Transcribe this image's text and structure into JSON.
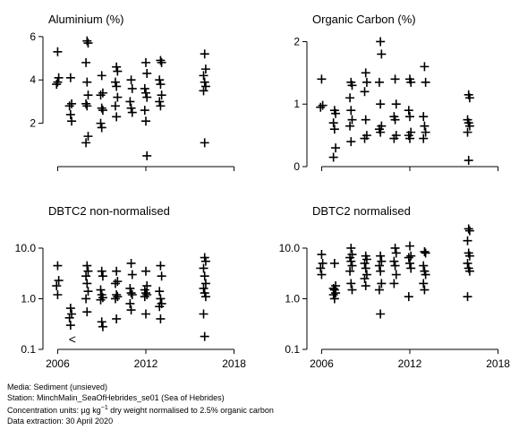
{
  "chart_data": [
    {
      "type": "scatter",
      "title": "Aluminium (%)",
      "xlim": [
        2005,
        2019
      ],
      "ylim": [
        0,
        6.2
      ],
      "yscale": "linear",
      "yticks": [
        2,
        4,
        6
      ],
      "ytick_labels": [
        "2",
        "4",
        "6"
      ],
      "xticks": [
        2006,
        2012,
        2018
      ],
      "xtick_labels": [
        "",
        "",
        ""
      ],
      "points": [
        {
          "x": 2006,
          "y": 5.3
        },
        {
          "x": 2006,
          "y": 4.1
        },
        {
          "x": 2006,
          "y": 3.8
        },
        {
          "x": 2006,
          "y": 3.9
        },
        {
          "x": 2007,
          "y": 4.1
        },
        {
          "x": 2007,
          "y": 2.9
        },
        {
          "x": 2007,
          "y": 2.8
        },
        {
          "x": 2007,
          "y": 2.4
        },
        {
          "x": 2007,
          "y": 2.1
        },
        {
          "x": 2008,
          "y": 5.8
        },
        {
          "x": 2008,
          "y": 5.7
        },
        {
          "x": 2008,
          "y": 4.8
        },
        {
          "x": 2008,
          "y": 3.9
        },
        {
          "x": 2008,
          "y": 3.3
        },
        {
          "x": 2008,
          "y": 2.9
        },
        {
          "x": 2008,
          "y": 2.8
        },
        {
          "x": 2008,
          "y": 1.4
        },
        {
          "x": 2008,
          "y": 1.1
        },
        {
          "x": 2009,
          "y": 4.2
        },
        {
          "x": 2009,
          "y": 3.4
        },
        {
          "x": 2009,
          "y": 3.3
        },
        {
          "x": 2009,
          "y": 2.7
        },
        {
          "x": 2009,
          "y": 2.6
        },
        {
          "x": 2009,
          "y": 2.0
        },
        {
          "x": 2009,
          "y": 1.8
        },
        {
          "x": 2010,
          "y": 4.6
        },
        {
          "x": 2010,
          "y": 4.4
        },
        {
          "x": 2010,
          "y": 3.9
        },
        {
          "x": 2010,
          "y": 3.7
        },
        {
          "x": 2010,
          "y": 3.2
        },
        {
          "x": 2010,
          "y": 2.8
        },
        {
          "x": 2010,
          "y": 2.3
        },
        {
          "x": 2011,
          "y": 4.0
        },
        {
          "x": 2011,
          "y": 3.6
        },
        {
          "x": 2011,
          "y": 3.0
        },
        {
          "x": 2011,
          "y": 2.7
        },
        {
          "x": 2011,
          "y": 2.5
        },
        {
          "x": 2012,
          "y": 4.8
        },
        {
          "x": 2012,
          "y": 4.3
        },
        {
          "x": 2012,
          "y": 3.6
        },
        {
          "x": 2012,
          "y": 3.4
        },
        {
          "x": 2012,
          "y": 3.2
        },
        {
          "x": 2012,
          "y": 2.6
        },
        {
          "x": 2012,
          "y": 2.1
        },
        {
          "x": 2012,
          "y": 0.5
        },
        {
          "x": 2013,
          "y": 4.9
        },
        {
          "x": 2013,
          "y": 4.8
        },
        {
          "x": 2013,
          "y": 4.0
        },
        {
          "x": 2013,
          "y": 3.8
        },
        {
          "x": 2013,
          "y": 3.3
        },
        {
          "x": 2013,
          "y": 3.0
        },
        {
          "x": 2013,
          "y": 2.8
        },
        {
          "x": 2016,
          "y": 5.2
        },
        {
          "x": 2016,
          "y": 4.5
        },
        {
          "x": 2016,
          "y": 4.2
        },
        {
          "x": 2016,
          "y": 3.9
        },
        {
          "x": 2016,
          "y": 3.7
        },
        {
          "x": 2016,
          "y": 3.5
        },
        {
          "x": 2016,
          "y": 1.1
        }
      ]
    },
    {
      "type": "scatter",
      "title": "Organic Carbon (%)",
      "xlim": [
        2005,
        2019
      ],
      "ylim": [
        0,
        2.15
      ],
      "yscale": "linear",
      "yticks": [
        0,
        1,
        2
      ],
      "ytick_labels": [
        "0",
        "1",
        "2"
      ],
      "xticks": [
        2006,
        2012,
        2018
      ],
      "xtick_labels": [
        "",
        "",
        ""
      ],
      "points": [
        {
          "x": 2006,
          "y": 1.4
        },
        {
          "x": 2006,
          "y": 0.98
        },
        {
          "x": 2006,
          "y": 0.95
        },
        {
          "x": 2007,
          "y": 0.9
        },
        {
          "x": 2007,
          "y": 0.85
        },
        {
          "x": 2007,
          "y": 0.7
        },
        {
          "x": 2007,
          "y": 0.6
        },
        {
          "x": 2007,
          "y": 0.3
        },
        {
          "x": 2007,
          "y": 0.15
        },
        {
          "x": 2008,
          "y": 1.35
        },
        {
          "x": 2008,
          "y": 1.3
        },
        {
          "x": 2008,
          "y": 1.1
        },
        {
          "x": 2008,
          "y": 0.9
        },
        {
          "x": 2008,
          "y": 0.75
        },
        {
          "x": 2008,
          "y": 0.65
        },
        {
          "x": 2008,
          "y": 0.4
        },
        {
          "x": 2009,
          "y": 1.5
        },
        {
          "x": 2009,
          "y": 1.35
        },
        {
          "x": 2009,
          "y": 1.2
        },
        {
          "x": 2009,
          "y": 0.75
        },
        {
          "x": 2009,
          "y": 0.5
        },
        {
          "x": 2009,
          "y": 0.45
        },
        {
          "x": 2010,
          "y": 2.0
        },
        {
          "x": 2010,
          "y": 1.8
        },
        {
          "x": 2010,
          "y": 1.35
        },
        {
          "x": 2010,
          "y": 1.0
        },
        {
          "x": 2010,
          "y": 0.65
        },
        {
          "x": 2010,
          "y": 0.6
        },
        {
          "x": 2010,
          "y": 0.55
        },
        {
          "x": 2011,
          "y": 1.4
        },
        {
          "x": 2011,
          "y": 1.0
        },
        {
          "x": 2011,
          "y": 0.8
        },
        {
          "x": 2011,
          "y": 0.75
        },
        {
          "x": 2011,
          "y": 0.5
        },
        {
          "x": 2011,
          "y": 0.45
        },
        {
          "x": 2012,
          "y": 1.4
        },
        {
          "x": 2012,
          "y": 1.35
        },
        {
          "x": 2012,
          "y": 0.9
        },
        {
          "x": 2012,
          "y": 0.8
        },
        {
          "x": 2012,
          "y": 0.55
        },
        {
          "x": 2012,
          "y": 0.5
        },
        {
          "x": 2012,
          "y": 0.45
        },
        {
          "x": 2013,
          "y": 1.6
        },
        {
          "x": 2013,
          "y": 1.35
        },
        {
          "x": 2013,
          "y": 0.8
        },
        {
          "x": 2013,
          "y": 0.65
        },
        {
          "x": 2013,
          "y": 0.55
        },
        {
          "x": 2013,
          "y": 0.45
        },
        {
          "x": 2016,
          "y": 1.15
        },
        {
          "x": 2016,
          "y": 1.1
        },
        {
          "x": 2016,
          "y": 0.75
        },
        {
          "x": 2016,
          "y": 0.7
        },
        {
          "x": 2016,
          "y": 0.65
        },
        {
          "x": 2016,
          "y": 0.55
        },
        {
          "x": 2016,
          "y": 0.1
        }
      ]
    },
    {
      "type": "scatter",
      "title": "DBTC2 non-normalised",
      "xlim": [
        2005,
        2019
      ],
      "ylim": [
        0.1,
        30
      ],
      "yscale": "log",
      "yticks": [
        0.1,
        1,
        10
      ],
      "ytick_labels": [
        "0.1",
        "1.0",
        "10.0"
      ],
      "xticks": [
        2006,
        2012,
        2018
      ],
      "xtick_labels": [
        "2006",
        "2012",
        "2018"
      ],
      "points": [
        {
          "x": 2006,
          "y": 4.5
        },
        {
          "x": 2006,
          "y": 2.3
        },
        {
          "x": 2006,
          "y": 1.8
        },
        {
          "x": 2006,
          "y": 1.2
        },
        {
          "x": 2007,
          "y": 0.65
        },
        {
          "x": 2007,
          "y": 0.5
        },
        {
          "x": 2007,
          "y": 0.42
        },
        {
          "x": 2007,
          "y": 0.3
        },
        {
          "x": 2008,
          "y": 4.5
        },
        {
          "x": 2008,
          "y": 3.5
        },
        {
          "x": 2008,
          "y": 2.8
        },
        {
          "x": 2008,
          "y": 2.0
        },
        {
          "x": 2008,
          "y": 1.4
        },
        {
          "x": 2008,
          "y": 1.0
        },
        {
          "x": 2008,
          "y": 0.55
        },
        {
          "x": 2009,
          "y": 3.5
        },
        {
          "x": 2009,
          "y": 2.8
        },
        {
          "x": 2009,
          "y": 1.5
        },
        {
          "x": 2009,
          "y": 1.2
        },
        {
          "x": 2009,
          "y": 1.05
        },
        {
          "x": 2009,
          "y": 0.95
        },
        {
          "x": 2009,
          "y": 0.35
        },
        {
          "x": 2009,
          "y": 0.28
        },
        {
          "x": 2010,
          "y": 3.5
        },
        {
          "x": 2010,
          "y": 2.2
        },
        {
          "x": 2010,
          "y": 2.0
        },
        {
          "x": 2010,
          "y": 1.2
        },
        {
          "x": 2010,
          "y": 1.1
        },
        {
          "x": 2010,
          "y": 1.0
        },
        {
          "x": 2010,
          "y": 0.4
        },
        {
          "x": 2011,
          "y": 5.0
        },
        {
          "x": 2011,
          "y": 3.0
        },
        {
          "x": 2011,
          "y": 1.6
        },
        {
          "x": 2011,
          "y": 1.3
        },
        {
          "x": 2011,
          "y": 1.2
        },
        {
          "x": 2011,
          "y": 0.8
        },
        {
          "x": 2011,
          "y": 0.6
        },
        {
          "x": 2012,
          "y": 3.5
        },
        {
          "x": 2012,
          "y": 1.8
        },
        {
          "x": 2012,
          "y": 1.5
        },
        {
          "x": 2012,
          "y": 1.3
        },
        {
          "x": 2012,
          "y": 1.2
        },
        {
          "x": 2012,
          "y": 1.1
        },
        {
          "x": 2012,
          "y": 0.5
        },
        {
          "x": 2013,
          "y": 4.5
        },
        {
          "x": 2013,
          "y": 2.8
        },
        {
          "x": 2013,
          "y": 1.4
        },
        {
          "x": 2013,
          "y": 1.0
        },
        {
          "x": 2013,
          "y": 0.8
        },
        {
          "x": 2013,
          "y": 0.7
        },
        {
          "x": 2013,
          "y": 0.4
        },
        {
          "x": 2016,
          "y": 6.5
        },
        {
          "x": 2016,
          "y": 5.5
        },
        {
          "x": 2016,
          "y": 4.0
        },
        {
          "x": 2016,
          "y": 2.8
        },
        {
          "x": 2016,
          "y": 2.0
        },
        {
          "x": 2016,
          "y": 1.6
        },
        {
          "x": 2016,
          "y": 1.3
        },
        {
          "x": 2016,
          "y": 1.1
        },
        {
          "x": 2016,
          "y": 0.5
        },
        {
          "x": 2016,
          "y": 0.18
        }
      ],
      "less_than": [
        {
          "x": 2007,
          "y": 0.16,
          "label": "<"
        }
      ]
    },
    {
      "type": "scatter",
      "title": "DBTC2 normalised",
      "xlim": [
        2005,
        2019
      ],
      "ylim": [
        0.1,
        30
      ],
      "yscale": "log",
      "yticks": [
        0.1,
        1,
        10
      ],
      "ytick_labels": [
        "0.1",
        "1.0",
        "10.0"
      ],
      "xticks": [
        2006,
        2012,
        2018
      ],
      "xtick_labels": [
        "2006",
        "2012",
        "2018"
      ],
      "points": [
        {
          "x": 2006,
          "y": 7.5
        },
        {
          "x": 2006,
          "y": 5.0
        },
        {
          "x": 2006,
          "y": 4.0
        },
        {
          "x": 2006,
          "y": 3.0
        },
        {
          "x": 2007,
          "y": 5.0
        },
        {
          "x": 2007,
          "y": 1.8
        },
        {
          "x": 2007,
          "y": 1.6
        },
        {
          "x": 2007,
          "y": 1.5
        },
        {
          "x": 2007,
          "y": 1.3
        },
        {
          "x": 2007,
          "y": 1.2
        },
        {
          "x": 2007,
          "y": 1.0
        },
        {
          "x": 2008,
          "y": 10.0
        },
        {
          "x": 2008,
          "y": 7.5
        },
        {
          "x": 2008,
          "y": 6.5
        },
        {
          "x": 2008,
          "y": 5.5
        },
        {
          "x": 2008,
          "y": 4.5
        },
        {
          "x": 2008,
          "y": 3.5
        },
        {
          "x": 2008,
          "y": 2.0
        },
        {
          "x": 2008,
          "y": 1.5
        },
        {
          "x": 2009,
          "y": 7.0
        },
        {
          "x": 2009,
          "y": 6.0
        },
        {
          "x": 2009,
          "y": 5.0
        },
        {
          "x": 2009,
          "y": 4.0
        },
        {
          "x": 2009,
          "y": 3.0
        },
        {
          "x": 2009,
          "y": 2.5
        },
        {
          "x": 2009,
          "y": 1.8
        },
        {
          "x": 2010,
          "y": 7.0
        },
        {
          "x": 2010,
          "y": 5.5
        },
        {
          "x": 2010,
          "y": 4.5
        },
        {
          "x": 2010,
          "y": 3.5
        },
        {
          "x": 2010,
          "y": 2.0
        },
        {
          "x": 2010,
          "y": 1.5
        },
        {
          "x": 2010,
          "y": 0.5
        },
        {
          "x": 2011,
          "y": 10.0
        },
        {
          "x": 2011,
          "y": 8.0
        },
        {
          "x": 2011,
          "y": 5.5
        },
        {
          "x": 2011,
          "y": 4.5
        },
        {
          "x": 2011,
          "y": 3.0
        },
        {
          "x": 2011,
          "y": 2.0
        },
        {
          "x": 2012,
          "y": 11.0
        },
        {
          "x": 2012,
          "y": 7.0
        },
        {
          "x": 2012,
          "y": 6.5
        },
        {
          "x": 2012,
          "y": 5.0
        },
        {
          "x": 2012,
          "y": 4.0
        },
        {
          "x": 2012,
          "y": 1.1
        },
        {
          "x": 2013,
          "y": 8.5
        },
        {
          "x": 2013,
          "y": 8.0
        },
        {
          "x": 2013,
          "y": 4.5
        },
        {
          "x": 2013,
          "y": 3.5
        },
        {
          "x": 2013,
          "y": 3.0
        },
        {
          "x": 2013,
          "y": 2.0
        },
        {
          "x": 2013,
          "y": 1.5
        },
        {
          "x": 2016,
          "y": 24.0
        },
        {
          "x": 2016,
          "y": 22.0
        },
        {
          "x": 2016,
          "y": 14.0
        },
        {
          "x": 2016,
          "y": 8.0
        },
        {
          "x": 2016,
          "y": 7.0
        },
        {
          "x": 2016,
          "y": 5.0
        },
        {
          "x": 2016,
          "y": 4.0
        },
        {
          "x": 2016,
          "y": 3.5
        },
        {
          "x": 2016,
          "y": 1.1
        }
      ]
    }
  ],
  "footer": {
    "media": "Media: Sediment (unsieved)",
    "station": "Station: MinchMalin_SeaOfHebrides_se01 (Sea of Hebrides)",
    "units_prefix": "Concentration units:  µg kg",
    "units_exponent": "−1",
    "units_suffix": " dry weight normalised to 2.5% organic carbon",
    "extraction": "Data extraction: 30 April 2020"
  }
}
